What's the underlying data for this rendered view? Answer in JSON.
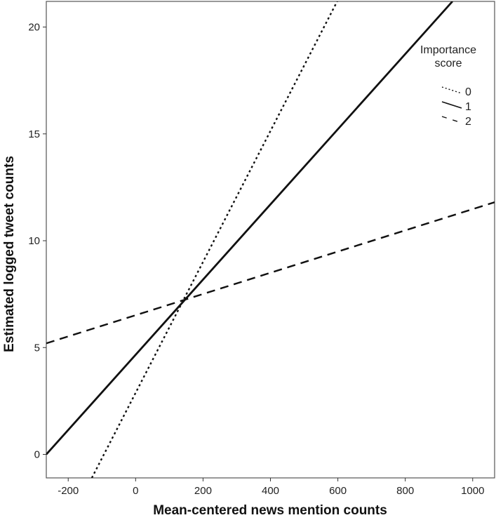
{
  "chart_data": {
    "type": "line",
    "title": "",
    "xlabel": "Mean-centered news mention counts",
    "ylabel": "Estimated logged tweet counts",
    "xlim": [
      -265,
      1065
    ],
    "ylim": [
      -1.1,
      21.2
    ],
    "xticks": [
      -200,
      0,
      200,
      400,
      600,
      800,
      1000
    ],
    "yticks": [
      0,
      5,
      10,
      15,
      20
    ],
    "grid": false,
    "legend": {
      "title_line1": "Importance",
      "title_line2": "score",
      "position": "top-right"
    },
    "series": [
      {
        "name": "0",
        "style": "dotted",
        "color": "#111111",
        "x": [
          -130,
          598
        ],
        "y": [
          -1.1,
          21.2
        ]
      },
      {
        "name": "1",
        "style": "solid",
        "color": "#111111",
        "x": [
          -265,
          940
        ],
        "y": [
          0.0,
          21.2
        ]
      },
      {
        "name": "2",
        "style": "dashed",
        "color": "#111111",
        "x": [
          -265,
          1065
        ],
        "y": [
          5.2,
          11.8
        ]
      }
    ]
  }
}
